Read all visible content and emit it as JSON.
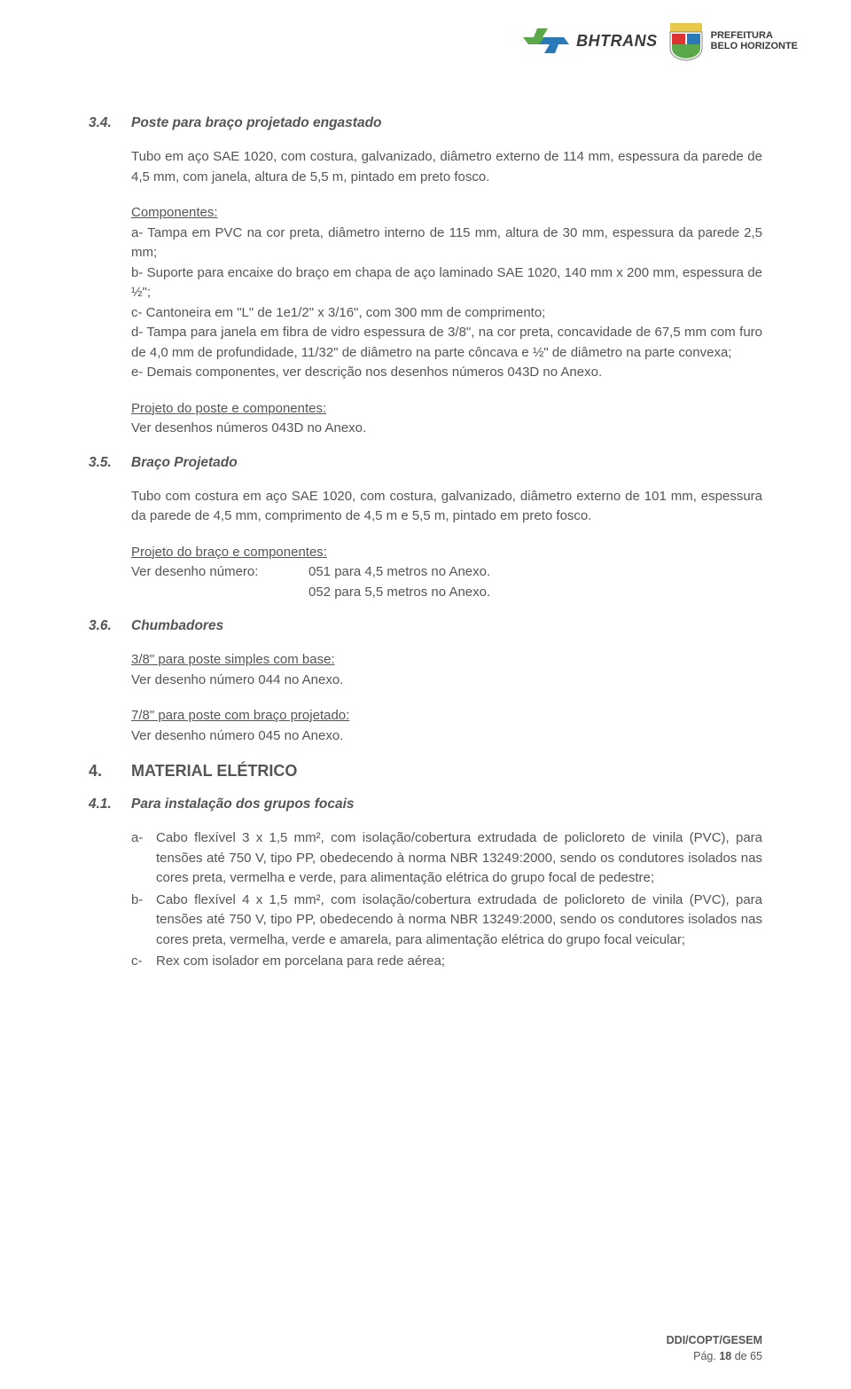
{
  "header": {
    "bhtrans_text": "BHTRANS",
    "pref_line1": "PREFEITURA",
    "pref_line2": "BELO HORIZONTE"
  },
  "s34": {
    "num": "3.4.",
    "title": "Poste para braço projetado engastado",
    "p1": "Tubo em aço SAE 1020, com costura, galvanizado, diâmetro externo de 114 mm, espessura da parede de 4,5 mm, com janela, altura de 5,5 m, pintado em preto fosco.",
    "comp_label": "Componentes:",
    "comp_a": "a- Tampa em PVC na cor preta, diâmetro interno de 115 mm, altura de 30 mm, espessura da parede 2,5 mm;",
    "comp_b": "b- Suporte para encaixe do braço em chapa de aço laminado SAE 1020, 140 mm x 200 mm, espessura de ½\";",
    "comp_c": "c- Cantoneira em \"L\" de 1e1/2\" x 3/16\", com 300 mm de comprimento;",
    "comp_d": "d- Tampa para janela em fibra de vidro espessura de 3/8\", na cor preta, concavidade de 67,5 mm com furo de 4,0 mm de profundidade, 11/32\" de diâmetro na parte côncava e ½\" de diâmetro na parte convexa;",
    "comp_e": "e- Demais componentes, ver descrição nos desenhos números 043D no Anexo.",
    "proj_label": "Projeto do poste e componentes:",
    "proj_ref": "Ver desenhos números 043D no Anexo."
  },
  "s35": {
    "num": "3.5.",
    "title": "Braço Projetado",
    "p1": "Tubo com costura em aço SAE 1020, com costura, galvanizado, diâmetro externo de 101 mm, espessura da parede de 4,5 mm, comprimento de 4,5 m e 5,5 m, pintado em preto fosco.",
    "proj_label": "Projeto do braço e componentes:",
    "ref_label": "Ver desenho número:",
    "ref_line1": "051 para 4,5 metros no Anexo.",
    "ref_line2": "052 para 5,5 metros no Anexo."
  },
  "s36": {
    "num": "3.6.",
    "title": "Chumbadores",
    "a_label": "3/8\" para poste simples com base:",
    "a_ref": "Ver desenho número 044 no Anexo.",
    "b_label": "7/8\" para poste com braço projetado:",
    "b_ref": "Ver desenho número 045 no Anexo."
  },
  "s4": {
    "num": "4.",
    "title": "MATERIAL ELÉTRICO"
  },
  "s41": {
    "num": "4.1.",
    "title": "Para instalação dos grupos focais",
    "items": [
      {
        "mark": "a-",
        "text": "Cabo flexível 3 x 1,5 mm², com isolação/cobertura extrudada de policloreto de vinila (PVC), para tensões até 750 V, tipo PP, obedecendo  à norma  NBR 13249:2000, sendo os condutores isolados nas cores preta, vermelha e verde, para alimentação elétrica do grupo focal de pedestre;"
      },
      {
        "mark": "b-",
        "text": "Cabo flexível 4 x 1,5 mm², com isolação/cobertura extrudada de policloreto de vinila (PVC), para tensões até 750 V, tipo PP, obedecendo  à norma  NBR 13249:2000, sendo os condutores isolados nas cores preta, vermelha, verde e amarela, para alimentação elétrica do grupo focal veicular;"
      },
      {
        "mark": "c-",
        "text": "Rex com isolador em porcelana para rede aérea;"
      }
    ]
  },
  "footer": {
    "line1": "DDI/COPT/GESEM",
    "page_label": "Pág. ",
    "page_num": "18",
    "page_of": " de ",
    "page_total": "65"
  }
}
